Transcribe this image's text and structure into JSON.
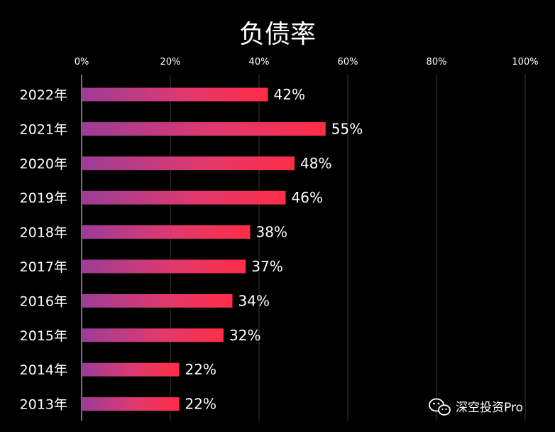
{
  "chart_data": {
    "type": "bar",
    "orientation": "horizontal",
    "title": "负债率",
    "categories": [
      "2022年",
      "2021年",
      "2020年",
      "2019年",
      "2018年",
      "2017年",
      "2016年",
      "2015年",
      "2014年",
      "2013年"
    ],
    "values": [
      42,
      55,
      48,
      46,
      38,
      37,
      34,
      32,
      22,
      22
    ],
    "value_labels": [
      "42%",
      "55%",
      "48%",
      "46%",
      "38%",
      "37%",
      "34%",
      "32%",
      "22%",
      "22%"
    ],
    "xlim": [
      0,
      100
    ],
    "xticks": [
      0,
      20,
      40,
      60,
      80,
      100
    ],
    "xtick_labels": [
      "0%",
      "20%",
      "40%",
      "60%",
      "80%",
      "100%"
    ],
    "xaxis_position": "top",
    "grid": true,
    "colors": {
      "background": "#000000",
      "bar_gradient_start": "#9b3d97",
      "bar_gradient_mid": "#e0396f",
      "bar_gradient_end": "#ff2d46",
      "gridline": "#3a3a3a",
      "text": "#ffffff"
    }
  },
  "watermark": {
    "icon": "wechat-icon",
    "text": "深空投资Pro"
  }
}
